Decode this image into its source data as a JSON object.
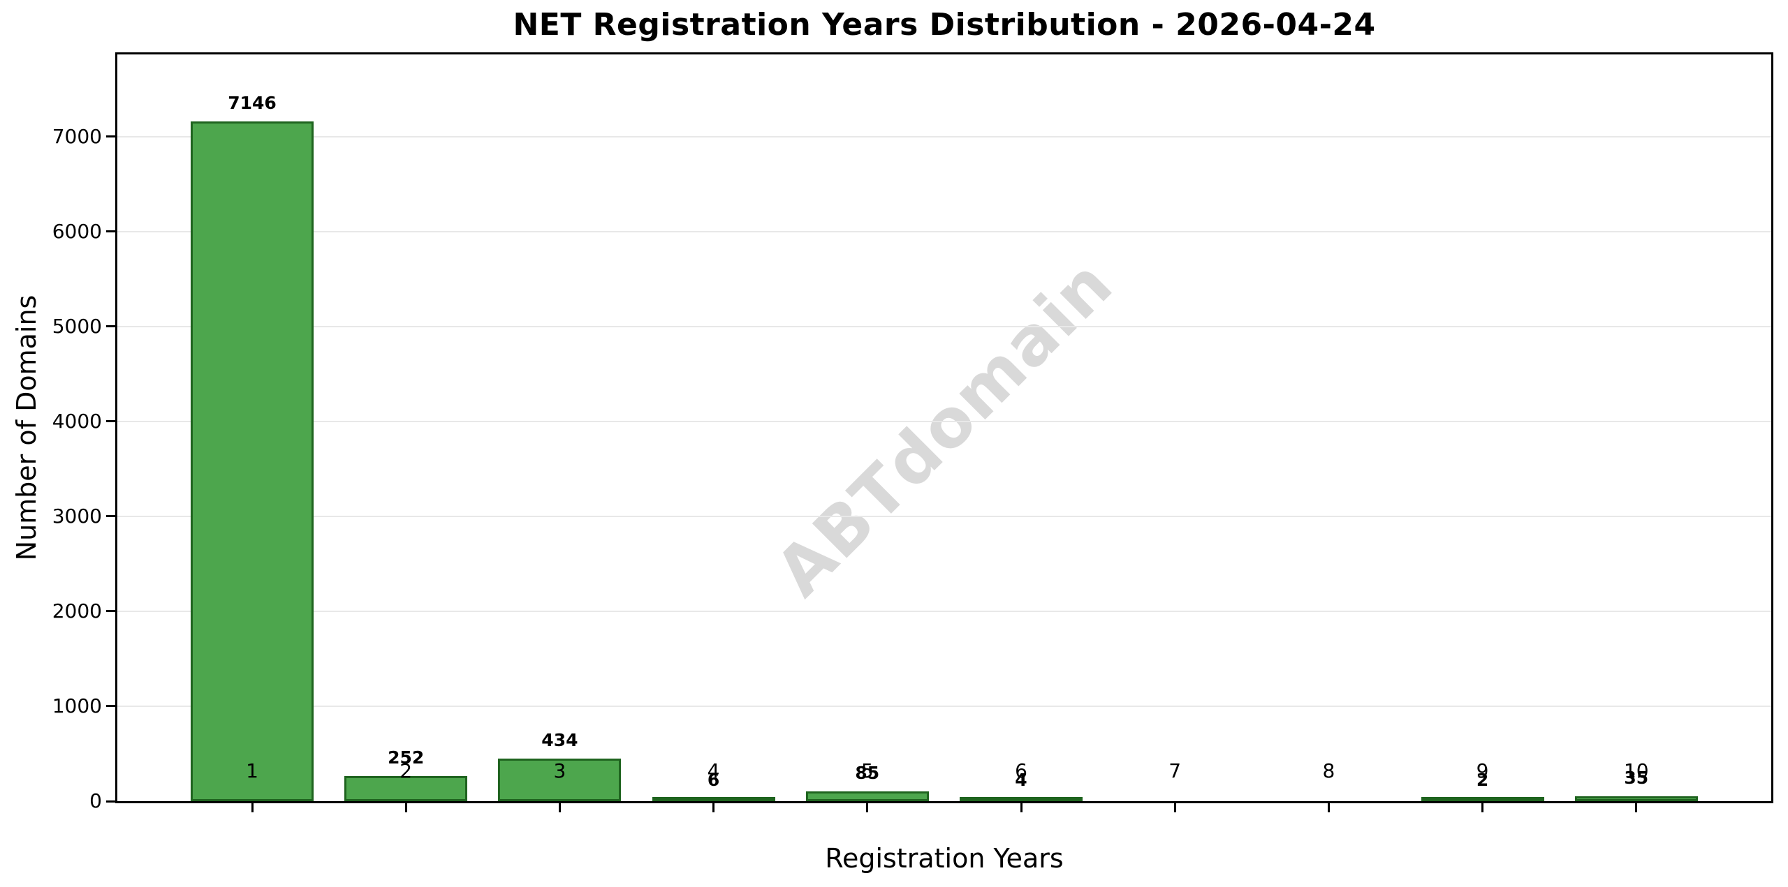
{
  "chart_data": {
    "type": "bar",
    "title": "NET Registration Years Distribution - 2026-04-24",
    "xlabel": "Registration Years",
    "ylabel": "Number of Domains",
    "categories": [
      "1",
      "2",
      "3",
      "4",
      "5",
      "6",
      "7",
      "8",
      "9",
      "10"
    ],
    "values": [
      7146,
      252,
      434,
      6,
      85,
      4,
      0,
      0,
      2,
      35
    ],
    "bar_value_labels": [
      "7146",
      "252",
      "434",
      "6",
      "85",
      "4",
      "",
      "",
      "2",
      "35"
    ],
    "yticks": [
      0,
      1000,
      2000,
      3000,
      4000,
      5000,
      6000,
      7000
    ],
    "ylim": [
      0,
      7865
    ],
    "grid": "horizontal",
    "legend": "none",
    "watermark": "ABTdomain",
    "colors": {
      "bar_fill": "#4da64d",
      "bar_edge": "#1f641f",
      "grid": "#e8e8e8",
      "axis": "#000000",
      "text": "#000000",
      "watermark": "#d9d9d9",
      "background": "#ffffff"
    }
  }
}
